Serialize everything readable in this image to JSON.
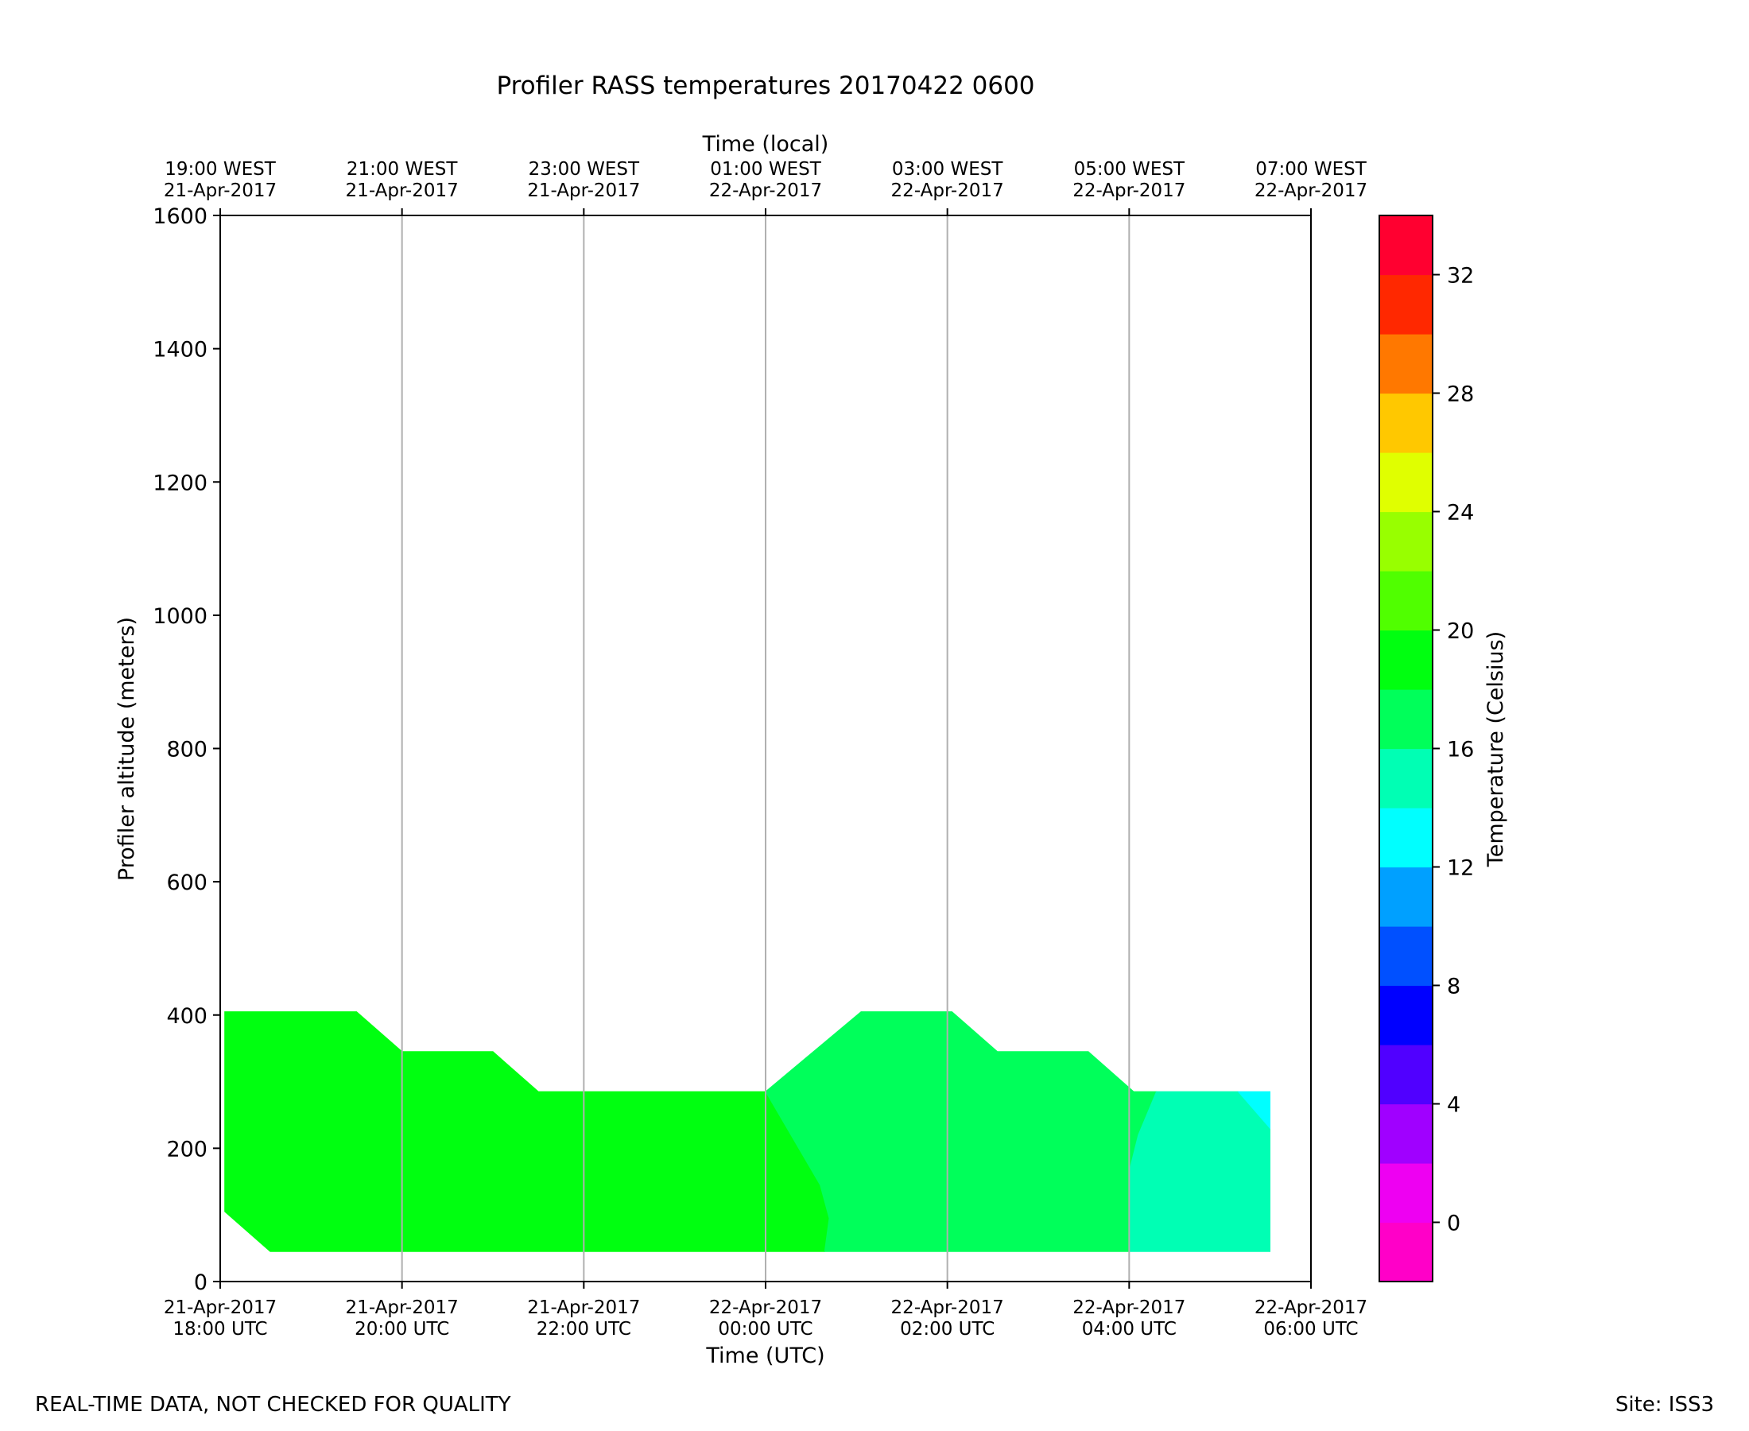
{
  "chart_data": {
    "type": "heatmap",
    "title": "Profiler RASS temperatures 20170422 0600",
    "xlabel": "Time (UTC)",
    "xlabel_top": "Time (local)",
    "ylabel": "Profiler altitude (meters)",
    "colorbar_label": "Temperature (Celsius)",
    "x_range_hours": [
      0,
      12
    ],
    "ylim": [
      0,
      1600
    ],
    "grid": "vertical",
    "x_ticks_bottom": [
      {
        "hour": 0,
        "date": "21-Apr-2017",
        "time": "18:00 UTC"
      },
      {
        "hour": 2,
        "date": "21-Apr-2017",
        "time": "20:00 UTC"
      },
      {
        "hour": 4,
        "date": "21-Apr-2017",
        "time": "22:00 UTC"
      },
      {
        "hour": 6,
        "date": "22-Apr-2017",
        "time": "00:00 UTC"
      },
      {
        "hour": 8,
        "date": "22-Apr-2017",
        "time": "02:00 UTC"
      },
      {
        "hour": 10,
        "date": "22-Apr-2017",
        "time": "04:00 UTC"
      },
      {
        "hour": 12,
        "date": "22-Apr-2017",
        "time": "06:00 UTC"
      }
    ],
    "x_ticks_top": [
      {
        "hour": 0,
        "time": "19:00 WEST",
        "date": "21-Apr-2017"
      },
      {
        "hour": 2,
        "time": "21:00 WEST",
        "date": "21-Apr-2017"
      },
      {
        "hour": 4,
        "time": "23:00 WEST",
        "date": "21-Apr-2017"
      },
      {
        "hour": 6,
        "time": "01:00 WEST",
        "date": "22-Apr-2017"
      },
      {
        "hour": 8,
        "time": "03:00 WEST",
        "date": "22-Apr-2017"
      },
      {
        "hour": 10,
        "time": "05:00 WEST",
        "date": "22-Apr-2017"
      },
      {
        "hour": 12,
        "time": "07:00 WEST",
        "date": "22-Apr-2017"
      }
    ],
    "y_ticks": [
      0,
      200,
      400,
      600,
      800,
      1000,
      1200,
      1400,
      1600
    ],
    "colorbar": {
      "range": [
        -2,
        34
      ],
      "ticks": [
        0,
        4,
        8,
        12,
        16,
        20,
        24,
        28,
        32
      ],
      "bands": [
        {
          "from": -2,
          "to": 0,
          "color": "#ff00c8"
        },
        {
          "from": 0,
          "to": 2,
          "color": "#ee00f2"
        },
        {
          "from": 2,
          "to": 4,
          "color": "#a000ff"
        },
        {
          "from": 4,
          "to": 6,
          "color": "#5000ff"
        },
        {
          "from": 6,
          "to": 8,
          "color": "#0000ff"
        },
        {
          "from": 8,
          "to": 10,
          "color": "#0050ff"
        },
        {
          "from": 10,
          "to": 12,
          "color": "#00a0ff"
        },
        {
          "from": 12,
          "to": 14,
          "color": "#00ffff"
        },
        {
          "from": 14,
          "to": 16,
          "color": "#00ffb4"
        },
        {
          "from": 16,
          "to": 18,
          "color": "#00ff5a"
        },
        {
          "from": 18,
          "to": 20,
          "color": "#00ff10"
        },
        {
          "from": 20,
          "to": 22,
          "color": "#50ff00"
        },
        {
          "from": 22,
          "to": 24,
          "color": "#98ff00"
        },
        {
          "from": 24,
          "to": 26,
          "color": "#e0ff00"
        },
        {
          "from": 26,
          "to": 28,
          "color": "#ffc800"
        },
        {
          "from": 28,
          "to": 30,
          "color": "#ff7800"
        },
        {
          "from": 30,
          "to": 32,
          "color": "#ff2800"
        },
        {
          "from": 32,
          "to": 34,
          "color": "#ff0030"
        }
      ]
    },
    "regions": [
      {
        "name": "18-20 C",
        "color": "#00ff10",
        "points": [
          [
            0.05,
            405
          ],
          [
            1.5,
            405
          ],
          [
            2.0,
            345
          ],
          [
            3.0,
            345
          ],
          [
            3.5,
            285
          ],
          [
            6.0,
            285
          ],
          [
            6.6,
            145
          ],
          [
            6.7,
            95
          ],
          [
            6.65,
            45
          ],
          [
            0.55,
            45
          ],
          [
            0.05,
            105
          ]
        ]
      },
      {
        "name": "16-18 C",
        "color": "#00ff5a",
        "points": [
          [
            6.0,
            285
          ],
          [
            7.05,
            405
          ],
          [
            8.05,
            405
          ],
          [
            8.55,
            345
          ],
          [
            9.55,
            345
          ],
          [
            10.05,
            285
          ],
          [
            10.3,
            285
          ],
          [
            10.1,
            220
          ],
          [
            10.0,
            165
          ],
          [
            10.0,
            45
          ],
          [
            6.65,
            45
          ],
          [
            6.7,
            95
          ],
          [
            6.6,
            145
          ]
        ]
      },
      {
        "name": "14-16 C",
        "color": "#00ffb4",
        "points": [
          [
            10.3,
            285
          ],
          [
            11.2,
            285
          ],
          [
            11.55,
            230
          ],
          [
            11.55,
            45
          ],
          [
            10.0,
            45
          ],
          [
            10.0,
            165
          ],
          [
            10.1,
            220
          ]
        ]
      },
      {
        "name": "12-14 C",
        "color": "#00ffff",
        "points": [
          [
            11.2,
            285
          ],
          [
            11.55,
            285
          ],
          [
            11.55,
            230
          ]
        ]
      }
    ]
  },
  "footer": {
    "left": "REAL-TIME DATA, NOT CHECKED FOR QUALITY",
    "right": "Site: ISS3"
  }
}
